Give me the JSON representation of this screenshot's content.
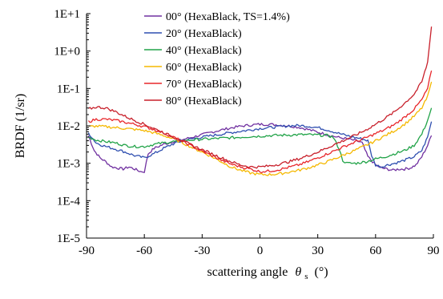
{
  "chart_data": {
    "type": "line",
    "title": "",
    "xlabel": "scattering angle",
    "xlabel_symbol": "θ",
    "xlabel_subscript": "s",
    "xlabel_unit": "(°)",
    "ylabel": "BRDF  (1/sr)",
    "xlim": [
      -90,
      90
    ],
    "ylim": [
      1e-05,
      10
    ],
    "yscale": "log",
    "x_ticks": [
      -90,
      -60,
      -30,
      0,
      30,
      60,
      90
    ],
    "x_tick_labels": [
      "-90",
      "-60",
      "-30",
      "0",
      "30",
      "60",
      "90"
    ],
    "y_ticks": [
      1e-05,
      0.0001,
      0.001,
      0.01,
      0.1,
      1,
      10
    ],
    "y_tick_labels": [
      "1E-5",
      "1E-4",
      "1E-3",
      "1E-2",
      "1E-1",
      "1E+0",
      "1E+1"
    ],
    "grid": false,
    "legend_position": "top-center",
    "series": [
      {
        "name": "00° (HexaBlack, TS=1.4%)",
        "color": "#7030a0",
        "x": [
          -89,
          -86,
          -83,
          -80,
          -77,
          -74,
          -71,
          -68,
          -65,
          -62,
          -60,
          -58,
          -55,
          -50,
          -45,
          -40,
          -35,
          -30,
          -25,
          -20,
          -15,
          -10,
          -5,
          0,
          5,
          10,
          15,
          20,
          25,
          30,
          35,
          40,
          45,
          50,
          53,
          56,
          60,
          63,
          66,
          69,
          72,
          75,
          78,
          81,
          84,
          87,
          89
        ],
        "y": [
          0.0055,
          0.0022,
          0.0014,
          0.0011,
          0.0008,
          0.00075,
          0.0007,
          0.0008,
          0.0007,
          0.0006,
          0.0006,
          0.0018,
          0.0025,
          0.0032,
          0.0038,
          0.0043,
          0.005,
          0.0058,
          0.0068,
          0.0078,
          0.0088,
          0.0098,
          0.0105,
          0.011,
          0.011,
          0.0105,
          0.01,
          0.0092,
          0.008,
          0.0068,
          0.0058,
          0.005,
          0.0045,
          0.004,
          0.0035,
          0.0015,
          0.0009,
          0.00075,
          0.0007,
          0.00065,
          0.0007,
          0.0007,
          0.00075,
          0.0009,
          0.0015,
          0.003,
          0.0055
        ]
      },
      {
        "name": "20° (HexaBlack)",
        "color": "#2f4fb0",
        "x": [
          -89,
          -85,
          -80,
          -75,
          -70,
          -65,
          -60,
          -55,
          -50,
          -45,
          -40,
          -35,
          -30,
          -25,
          -20,
          -15,
          -10,
          -5,
          0,
          5,
          10,
          15,
          20,
          25,
          30,
          35,
          40,
          45,
          50,
          53,
          56,
          58,
          60,
          63,
          66,
          70,
          75,
          80,
          84,
          87,
          89
        ],
        "y": [
          0.0065,
          0.0035,
          0.0028,
          0.0024,
          0.002,
          0.0016,
          0.0014,
          0.0018,
          0.0025,
          0.0033,
          0.004,
          0.0045,
          0.005,
          0.0055,
          0.006,
          0.0066,
          0.0072,
          0.0078,
          0.0085,
          0.009,
          0.0095,
          0.01,
          0.0102,
          0.0098,
          0.009,
          0.0078,
          0.0065,
          0.0055,
          0.0048,
          0.0045,
          0.004,
          0.0016,
          0.0009,
          0.0008,
          0.0009,
          0.001,
          0.0012,
          0.0015,
          0.0022,
          0.005,
          0.013
        ]
      },
      {
        "name": "40° (HexaBlack)",
        "color": "#21a348",
        "x": [
          -89,
          -85,
          -80,
          -75,
          -70,
          -65,
          -60,
          -55,
          -50,
          -45,
          -40,
          -35,
          -30,
          -25,
          -20,
          -15,
          -10,
          -5,
          0,
          5,
          10,
          15,
          20,
          25,
          30,
          35,
          38,
          41,
          43,
          45,
          50,
          55,
          60,
          65,
          70,
          75,
          80,
          84,
          87,
          89
        ],
        "y": [
          0.005,
          0.0042,
          0.0038,
          0.0035,
          0.003,
          0.0028,
          0.0028,
          0.0032,
          0.0035,
          0.0038,
          0.004,
          0.0042,
          0.0044,
          0.0045,
          0.0047,
          0.0048,
          0.005,
          0.0052,
          0.0053,
          0.0055,
          0.0056,
          0.0057,
          0.0058,
          0.0058,
          0.0057,
          0.0055,
          0.005,
          0.0025,
          0.0012,
          0.001,
          0.001,
          0.0011,
          0.0013,
          0.0015,
          0.0018,
          0.0022,
          0.003,
          0.006,
          0.014,
          0.03
        ]
      },
      {
        "name": "60° (HexaBlack)",
        "color": "#f5b800",
        "x": [
          -89,
          -85,
          -80,
          -75,
          -70,
          -65,
          -60,
          -55,
          -50,
          -45,
          -40,
          -35,
          -30,
          -25,
          -20,
          -15,
          -10,
          -5,
          0,
          5,
          10,
          15,
          20,
          25,
          30,
          35,
          40,
          45,
          50,
          55,
          60,
          65,
          70,
          75,
          80,
          84,
          87,
          89
        ],
        "y": [
          0.0095,
          0.0098,
          0.0095,
          0.009,
          0.0085,
          0.008,
          0.0075,
          0.0065,
          0.0055,
          0.0045,
          0.0035,
          0.0026,
          0.002,
          0.0015,
          0.0011,
          0.0008,
          0.00065,
          0.00055,
          0.0005,
          0.0005,
          0.00052,
          0.00058,
          0.00065,
          0.00075,
          0.0009,
          0.0011,
          0.0014,
          0.0018,
          0.0023,
          0.003,
          0.004,
          0.0055,
          0.0075,
          0.011,
          0.018,
          0.03,
          0.06,
          0.15
        ]
      },
      {
        "name": "70° (HexaBlack)",
        "color": "#e8262a",
        "x": [
          -89,
          -85,
          -80,
          -75,
          -70,
          -65,
          -60,
          -55,
          -50,
          -45,
          -40,
          -35,
          -30,
          -25,
          -20,
          -15,
          -10,
          -5,
          0,
          5,
          10,
          15,
          20,
          25,
          30,
          35,
          40,
          45,
          50,
          55,
          60,
          65,
          70,
          75,
          80,
          84,
          87,
          89
        ],
        "y": [
          0.013,
          0.015,
          0.015,
          0.014,
          0.0125,
          0.011,
          0.0095,
          0.008,
          0.0065,
          0.005,
          0.0038,
          0.0028,
          0.0021,
          0.0016,
          0.0012,
          0.00095,
          0.0008,
          0.0007,
          0.0006,
          0.00062,
          0.00068,
          0.00078,
          0.0009,
          0.0011,
          0.0014,
          0.0018,
          0.0023,
          0.003,
          0.0038,
          0.0048,
          0.0062,
          0.008,
          0.011,
          0.017,
          0.028,
          0.05,
          0.1,
          0.3
        ]
      },
      {
        "name": "80° (HexaBlack)",
        "color": "#c8202b",
        "x": [
          -89,
          -85,
          -80,
          -75,
          -70,
          -65,
          -60,
          -55,
          -50,
          -45,
          -40,
          -35,
          -30,
          -25,
          -20,
          -15,
          -10,
          -5,
          0,
          5,
          10,
          15,
          20,
          25,
          30,
          35,
          40,
          45,
          50,
          55,
          60,
          65,
          70,
          75,
          80,
          84,
          87,
          89
        ],
        "y": [
          0.028,
          0.032,
          0.03,
          0.024,
          0.018,
          0.014,
          0.011,
          0.0085,
          0.0066,
          0.005,
          0.0039,
          0.003,
          0.0023,
          0.0018,
          0.0014,
          0.0011,
          0.0009,
          0.0008,
          0.0008,
          0.00085,
          0.00095,
          0.0011,
          0.0013,
          0.0016,
          0.002,
          0.0026,
          0.0034,
          0.0044,
          0.0058,
          0.0078,
          0.011,
          0.016,
          0.024,
          0.04,
          0.07,
          0.15,
          0.5,
          4.5
        ]
      }
    ]
  }
}
